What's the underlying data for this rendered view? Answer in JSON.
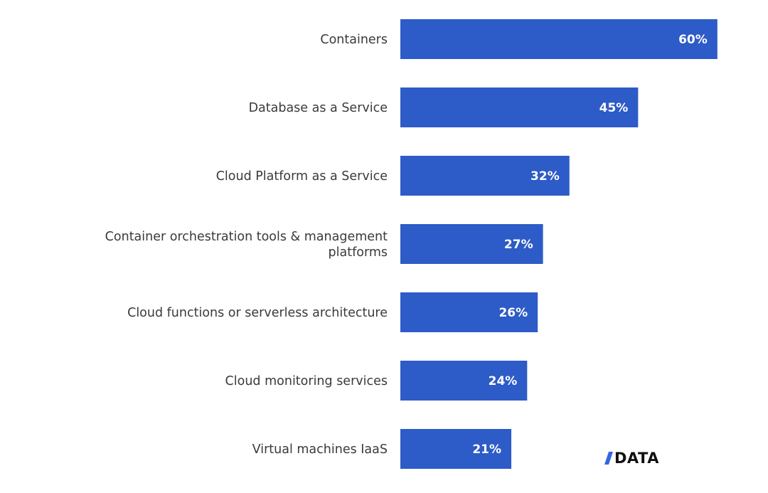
{
  "chart_data": {
    "type": "bar",
    "orientation": "horizontal",
    "categories": [
      "Containers",
      "Database as a Service",
      "Cloud Platform as a Service",
      "Container orchestration tools & management platforms",
      "Cloud functions or serverless architecture",
      "Cloud monitoring services",
      "Virtual machines IaaS"
    ],
    "label_lines": [
      [
        "Containers"
      ],
      [
        "Database as a Service"
      ],
      [
        "Cloud Platform as a Service"
      ],
      [
        "Container orchestration tools & management",
        "platforms"
      ],
      [
        "Cloud functions or serverless architecture"
      ],
      [
        "Cloud monitoring services"
      ],
      [
        "Virtual machines IaaS"
      ]
    ],
    "values": [
      60,
      45,
      32,
      27,
      26,
      24,
      21
    ],
    "value_labels": [
      "60%",
      "45%",
      "32%",
      "27%",
      "26%",
      "24%",
      "21%"
    ],
    "value_unit": "%",
    "bar_color": "#2d5bc7",
    "value_label_color": "#ffffff",
    "grid": false,
    "legend": "none",
    "title": "",
    "xlabel": "",
    "ylabel": ""
  },
  "logo": {
    "text": "DATA",
    "icon": "slash-icon"
  }
}
